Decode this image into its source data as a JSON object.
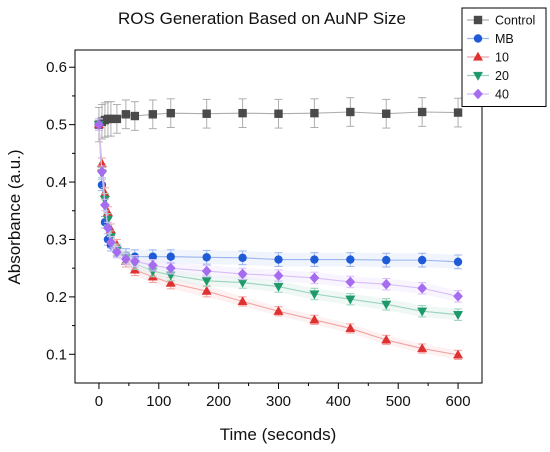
{
  "chart_data": {
    "type": "line",
    "title": "ROS Generation Based on AuNP Size",
    "xlabel": "Time (seconds)",
    "ylabel": "Absorbance (a.u.)",
    "xlim": [
      -40,
      640
    ],
    "ylim": [
      0.05,
      0.63
    ],
    "xticks": [
      0,
      100,
      200,
      300,
      400,
      500,
      600
    ],
    "yticks": [
      0.1,
      0.2,
      0.3,
      0.4,
      0.5,
      0.6
    ],
    "xtick_labels": [
      "0",
      "100",
      "200",
      "300",
      "400",
      "500",
      "600"
    ],
    "ytick_labels": [
      "0.1",
      "0.2",
      "0.3",
      "0.4",
      "0.5",
      "0.6"
    ],
    "grid": false,
    "legend_position": "top-right",
    "series": [
      {
        "name": "Control",
        "marker": "square",
        "color": "#4a4a4a",
        "points": [
          [
            0,
            0.5
          ],
          [
            5,
            0.505
          ],
          [
            10,
            0.508
          ],
          [
            15,
            0.51
          ],
          [
            20,
            0.51
          ],
          [
            30,
            0.51
          ],
          [
            45,
            0.518
          ],
          [
            60,
            0.515
          ],
          [
            90,
            0.518
          ],
          [
            120,
            0.52
          ],
          [
            180,
            0.519
          ],
          [
            240,
            0.52
          ],
          [
            300,
            0.519
          ],
          [
            360,
            0.52
          ],
          [
            420,
            0.522
          ],
          [
            480,
            0.519
          ],
          [
            540,
            0.522
          ],
          [
            600,
            0.521
          ]
        ],
        "errors": [
          0.03,
          0.03,
          0.03,
          0.03,
          0.03,
          0.025,
          0.025,
          0.025,
          0.025,
          0.025,
          0.025,
          0.025,
          0.025,
          0.025,
          0.025,
          0.025,
          0.025,
          0.025
        ]
      },
      {
        "name": "MB",
        "marker": "circle",
        "color": "#1f5bd6",
        "points": [
          [
            0,
            0.5
          ],
          [
            5,
            0.395
          ],
          [
            10,
            0.33
          ],
          [
            15,
            0.3
          ],
          [
            20,
            0.29
          ],
          [
            30,
            0.28
          ],
          [
            45,
            0.272
          ],
          [
            60,
            0.27
          ],
          [
            90,
            0.27
          ],
          [
            120,
            0.27
          ],
          [
            180,
            0.269
          ],
          [
            240,
            0.268
          ],
          [
            300,
            0.265
          ],
          [
            360,
            0.265
          ],
          [
            420,
            0.265
          ],
          [
            480,
            0.264
          ],
          [
            540,
            0.264
          ],
          [
            600,
            0.261
          ]
        ],
        "errors": [
          0.01,
          0.01,
          0.01,
          0.01,
          0.01,
          0.01,
          0.012,
          0.012,
          0.012,
          0.012,
          0.012,
          0.012,
          0.012,
          0.012,
          0.012,
          0.012,
          0.012,
          0.012
        ]
      },
      {
        "name": "10",
        "marker": "triangle-up",
        "color": "#e03131",
        "points": [
          [
            0,
            0.5
          ],
          [
            5,
            0.432
          ],
          [
            10,
            0.38
          ],
          [
            15,
            0.347
          ],
          [
            20,
            0.317
          ],
          [
            30,
            0.29
          ],
          [
            45,
            0.262
          ],
          [
            60,
            0.247
          ],
          [
            90,
            0.235
          ],
          [
            120,
            0.224
          ],
          [
            180,
            0.21
          ],
          [
            240,
            0.192
          ],
          [
            300,
            0.175
          ],
          [
            360,
            0.16
          ],
          [
            420,
            0.145
          ],
          [
            480,
            0.125
          ],
          [
            540,
            0.11
          ],
          [
            600,
            0.099
          ]
        ],
        "errors": [
          0.01,
          0.01,
          0.01,
          0.01,
          0.01,
          0.01,
          0.01,
          0.01,
          0.01,
          0.01,
          0.01,
          0.008,
          0.008,
          0.008,
          0.008,
          0.008,
          0.008,
          0.008
        ]
      },
      {
        "name": "20",
        "marker": "triangle-down",
        "color": "#1e9a6a",
        "points": [
          [
            0,
            0.5
          ],
          [
            5,
            0.415
          ],
          [
            10,
            0.37
          ],
          [
            15,
            0.335
          ],
          [
            20,
            0.305
          ],
          [
            30,
            0.282
          ],
          [
            45,
            0.268
          ],
          [
            60,
            0.258
          ],
          [
            90,
            0.245
          ],
          [
            120,
            0.238
          ],
          [
            180,
            0.228
          ],
          [
            240,
            0.225
          ],
          [
            300,
            0.218
          ],
          [
            360,
            0.205
          ],
          [
            420,
            0.196
          ],
          [
            480,
            0.187
          ],
          [
            540,
            0.175
          ],
          [
            600,
            0.169
          ]
        ],
        "errors": [
          0.01,
          0.01,
          0.01,
          0.01,
          0.01,
          0.01,
          0.01,
          0.01,
          0.01,
          0.01,
          0.01,
          0.01,
          0.01,
          0.01,
          0.01,
          0.01,
          0.01,
          0.01
        ]
      },
      {
        "name": "40",
        "marker": "diamond",
        "color": "#a66cf0",
        "points": [
          [
            0,
            0.5
          ],
          [
            5,
            0.418
          ],
          [
            10,
            0.36
          ],
          [
            15,
            0.32
          ],
          [
            20,
            0.295
          ],
          [
            30,
            0.278
          ],
          [
            45,
            0.266
          ],
          [
            60,
            0.262
          ],
          [
            90,
            0.255
          ],
          [
            120,
            0.25
          ],
          [
            180,
            0.245
          ],
          [
            240,
            0.24
          ],
          [
            300,
            0.237
          ],
          [
            360,
            0.233
          ],
          [
            420,
            0.226
          ],
          [
            480,
            0.222
          ],
          [
            540,
            0.215
          ],
          [
            600,
            0.201
          ]
        ],
        "errors": [
          0.01,
          0.01,
          0.01,
          0.01,
          0.01,
          0.01,
          0.01,
          0.01,
          0.01,
          0.01,
          0.01,
          0.01,
          0.01,
          0.01,
          0.01,
          0.01,
          0.01,
          0.01
        ]
      }
    ]
  }
}
